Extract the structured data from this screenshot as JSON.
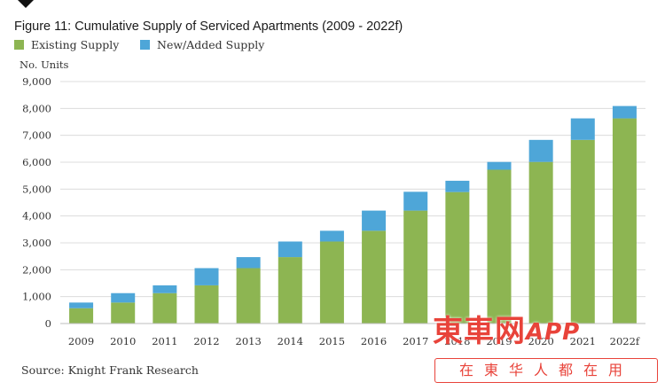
{
  "chart_data": {
    "type": "bar",
    "stacked": true,
    "title": "Figure 11: Cumulative Supply of Serviced Apartments (2009 - 2022f)",
    "ylabel": "No. Units",
    "ylim": [
      0,
      9000
    ],
    "yticks": [
      0,
      1000,
      2000,
      3000,
      4000,
      5000,
      6000,
      7000,
      8000,
      9000
    ],
    "ytick_labels": [
      "0",
      "1,000",
      "2,000",
      "3,000",
      "4,000",
      "5,000",
      "6,000",
      "7,000",
      "8,000",
      "9,000"
    ],
    "grid": true,
    "legend_position": "top-left",
    "categories": [
      "2009",
      "2010",
      "2011",
      "2012",
      "2013",
      "2014",
      "2015",
      "2016",
      "2017",
      "2018",
      "2019",
      "2020",
      "2021",
      "2022f"
    ],
    "series": [
      {
        "name": "Existing Supply",
        "color": "#8db552",
        "values": [
          570,
          780,
          1130,
          1420,
          2060,
          2470,
          3050,
          3450,
          4200,
          4890,
          5720,
          6010,
          6830,
          7630
        ]
      },
      {
        "name": "New/Added Supply",
        "color": "#4ea6d8",
        "values": [
          210,
          350,
          290,
          640,
          410,
          580,
          400,
          750,
          700,
          420,
          290,
          820,
          800,
          460
        ]
      }
    ],
    "source": "Source: Knight Frank Research"
  },
  "watermark": {
    "logo_text": "東車网",
    "logo_suffix": "APP",
    "banner_text": "在東华人都在用"
  }
}
